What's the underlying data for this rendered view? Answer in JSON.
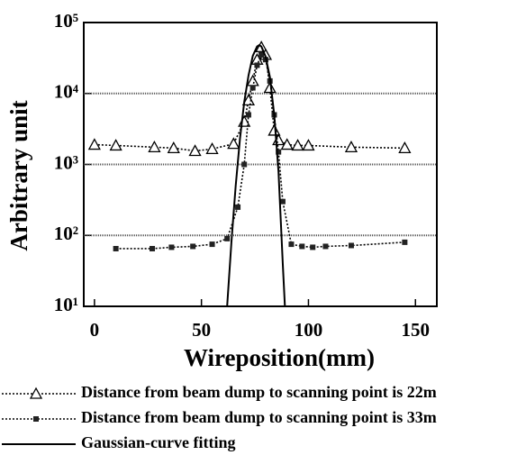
{
  "chart_data": {
    "type": "line",
    "xlabel": "Wireposition(mm)",
    "ylabel": "Arbitrary unit",
    "xlim": [
      -5,
      160
    ],
    "xticks": [
      0,
      50,
      100,
      150
    ],
    "ylim": [
      10,
      100000
    ],
    "yticks": [
      {
        "value": 10,
        "label": "10¹"
      },
      {
        "value": 100,
        "label": "10²"
      },
      {
        "value": 1000,
        "label": "10³"
      },
      {
        "value": 10000,
        "label": "10⁴"
      },
      {
        "value": 100000,
        "label": "10⁵"
      }
    ],
    "log_y": true,
    "grid": true,
    "legend": "bottom",
    "series": [
      {
        "name": "Distance from beam dump to scanning point is 22m",
        "color": "#000000",
        "marker": "triangle",
        "line_style": "dotted",
        "x": [
          0,
          10,
          28,
          37,
          47,
          55,
          65,
          70,
          72,
          74,
          76,
          78,
          80,
          82,
          84,
          86,
          90,
          95,
          100,
          120,
          145
        ],
        "values": [
          1900,
          1850,
          1750,
          1700,
          1550,
          1650,
          1950,
          4000,
          8000,
          15000,
          30000,
          45000,
          35000,
          12000,
          3000,
          2200,
          1900,
          1850,
          1850,
          1750,
          1700
        ]
      },
      {
        "name": "Distance from beam dump to scanning point is 33m",
        "color": "#000000",
        "marker": "square",
        "line_style": "dotted",
        "x": [
          10,
          27,
          36,
          46,
          55,
          62,
          67,
          70,
          72,
          74,
          76,
          78,
          80,
          82,
          84,
          86,
          88,
          92,
          97,
          102,
          108,
          120,
          145
        ],
        "values": [
          65,
          65,
          68,
          70,
          75,
          90,
          250,
          1000,
          5000,
          12000,
          25000,
          35000,
          30000,
          15000,
          5000,
          1500,
          300,
          75,
          70,
          68,
          70,
          72,
          80
        ]
      },
      {
        "name": "Gaussian-curve fitting",
        "color": "#000000",
        "marker": "none",
        "line_style": "solid",
        "x": [
          62,
          64,
          66,
          68,
          70,
          72,
          74,
          76,
          77,
          78,
          80,
          82,
          84,
          86,
          88,
          89
        ],
        "values": [
          10,
          80,
          500,
          2300,
          7600,
          18000,
          34000,
          46000,
          48000,
          46000,
          33000,
          17000,
          5000,
          800,
          40,
          10
        ]
      }
    ]
  }
}
